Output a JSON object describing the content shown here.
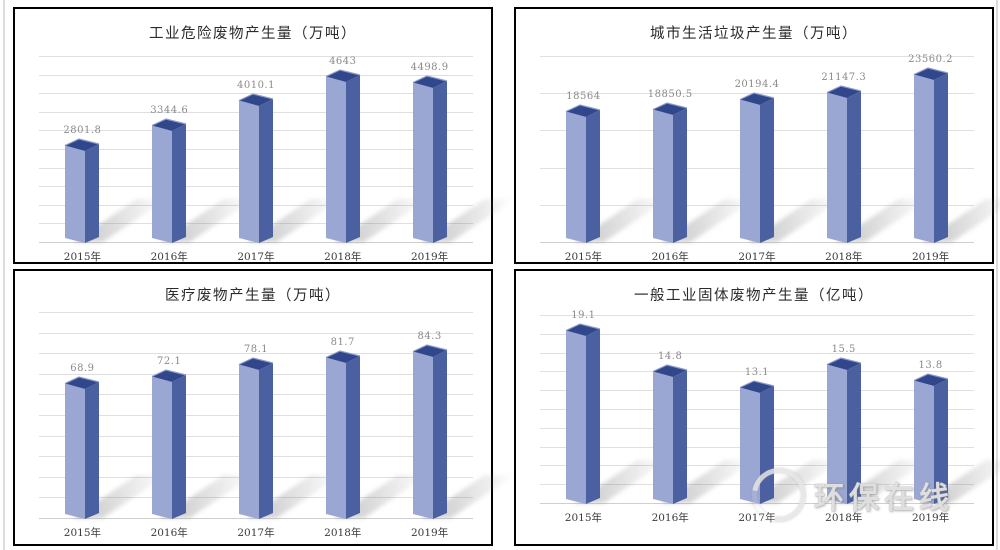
{
  "watermark": {
    "text": "环保在线"
  },
  "colors": {
    "bar_front": "#9aa7d2",
    "bar_side": "#4a60a1",
    "bar_top": "#31478c",
    "bar_top_edge": "#8c9bca",
    "shadow": "#7f7f7f",
    "gridline": "#dedee3",
    "panel_border": "#000000",
    "value_label": "#8a8a8a",
    "category_label": "#3a3a3a",
    "title_text": "#2b2b2b"
  },
  "chart_data": [
    {
      "type": "bar",
      "title": "工业危险废物产生量（万吨）",
      "categories": [
        "2015年",
        "2016年",
        "2017年",
        "2018年",
        "2019年"
      ],
      "values": [
        2801.8,
        3344.6,
        4010.1,
        4643,
        4498.9
      ],
      "labels": [
        "2801.8",
        "3344.6",
        "4010.1",
        "4643",
        "4498.9"
      ],
      "xlabel": "",
      "ylabel": "",
      "axis": {
        "ymin": 0,
        "ymax": 5000,
        "step": 500,
        "grid": true,
        "tick_labels_visible": false
      },
      "legend": "none",
      "style": "3d-column"
    },
    {
      "type": "bar",
      "title": "城市生活垃圾产生量（万吨）",
      "categories": [
        "2015年",
        "2016年",
        "2017年",
        "2018年",
        "2019年"
      ],
      "values": [
        18564,
        18850.5,
        20194.4,
        21147.3,
        23560.2
      ],
      "labels": [
        "18564",
        "18850.5",
        "20194.4",
        "21147.3",
        "23560.2"
      ],
      "xlabel": "",
      "ylabel": "",
      "axis": {
        "ymin": 0,
        "ymax": 25000,
        "step": 5000,
        "grid": true,
        "tick_labels_visible": false
      },
      "legend": "none",
      "style": "3d-column"
    },
    {
      "type": "bar",
      "title": "医疗废物产生量（万吨）",
      "categories": [
        "2015年",
        "2016年",
        "2017年",
        "2018年",
        "2019年"
      ],
      "values": [
        68.9,
        72.1,
        78.1,
        81.7,
        84.3
      ],
      "labels": [
        "68.9",
        "72.1",
        "78.1",
        "81.7",
        "84.3"
      ],
      "xlabel": "",
      "ylabel": "",
      "axis": {
        "ymin": 0,
        "ymax": 100,
        "step": 10,
        "grid": true,
        "tick_labels_visible": false
      },
      "legend": "none",
      "style": "3d-column"
    },
    {
      "type": "bar",
      "title": "一般工业固体废物产生量（亿吨）",
      "categories": [
        "2015年",
        "2016年",
        "2017年",
        "2018年",
        "2019年"
      ],
      "values": [
        19.1,
        14.8,
        13.1,
        15.5,
        13.8
      ],
      "labels": [
        "19.1",
        "14.8",
        "13.1",
        "15.5",
        "13.8"
      ],
      "xlabel": "",
      "ylabel": "",
      "axis": {
        "ymin": 0,
        "ymax": 20,
        "step": 2,
        "grid": true,
        "tick_labels_visible": false
      },
      "legend": "none",
      "style": "3d-column"
    }
  ]
}
